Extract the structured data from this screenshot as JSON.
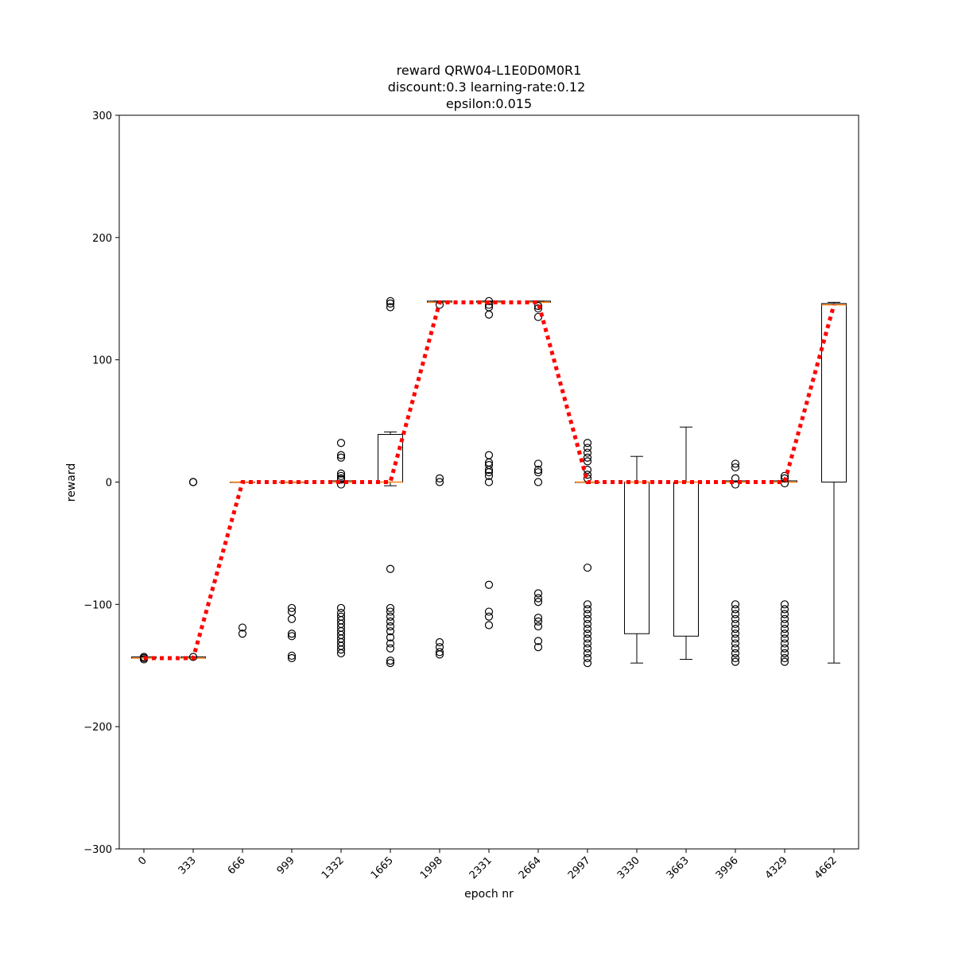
{
  "chart_data": {
    "type": "box",
    "title": [
      "reward QRW04-L1E0D0M0R1",
      "discount:0.3 learning-rate:0.12",
      "epsilon:0.015"
    ],
    "xlabel": "epoch nr",
    "ylabel": "reward",
    "ylim": [
      -300,
      300
    ],
    "yticks": [
      -300,
      -200,
      -100,
      0,
      100,
      200,
      300
    ],
    "categories": [
      "0",
      "333",
      "666",
      "999",
      "1332",
      "1665",
      "1998",
      "2331",
      "2664",
      "2997",
      "3330",
      "3663",
      "3996",
      "4329",
      "4662"
    ],
    "grid": false,
    "legend": "none",
    "colors": {
      "box": "#000000",
      "median": "#ff7f0e",
      "trend": "#ff0000"
    },
    "boxes": [
      {
        "q1": -144,
        "median": -144,
        "q3": -143,
        "whisker_low": -144,
        "whisker_high": -143,
        "fliers": [
          -143,
          -144,
          -145
        ]
      },
      {
        "q1": -144,
        "median": -144,
        "q3": -143,
        "whisker_low": -144,
        "whisker_high": -143,
        "fliers": [
          0,
          0,
          -143
        ]
      },
      {
        "q1": 0,
        "median": 0,
        "q3": 0,
        "whisker_low": 0,
        "whisker_high": 0,
        "fliers": [
          -119,
          -124
        ]
      },
      {
        "q1": 0,
        "median": 0,
        "q3": 0,
        "whisker_low": 0,
        "whisker_high": 0,
        "fliers": [
          -103,
          -106,
          -112,
          -124,
          -126,
          -142,
          -144
        ]
      },
      {
        "q1": 0,
        "median": 0,
        "q3": 1,
        "whisker_low": 0,
        "whisker_high": 1,
        "fliers": [
          32,
          22,
          20,
          7,
          5,
          3,
          2,
          -2,
          -103,
          -107,
          -110,
          -113,
          -116,
          -119,
          -122,
          -125,
          -128,
          -131,
          -134,
          -137,
          -140
        ]
      },
      {
        "q1": 0,
        "median": 0,
        "q3": 39,
        "whisker_low": -3,
        "whisker_high": 41,
        "fliers": [
          148,
          146,
          143,
          -71,
          -103,
          -106,
          -110,
          -114,
          -118,
          -122,
          -127,
          -132,
          -136,
          -146,
          -148
        ]
      },
      {
        "q1": 147,
        "median": 147,
        "q3": 148,
        "whisker_low": 147,
        "whisker_high": 148,
        "fliers": [
          145,
          3,
          0,
          -131,
          -135,
          -139,
          -141
        ]
      },
      {
        "q1": 147,
        "median": 147,
        "q3": 148,
        "whisker_low": 147,
        "whisker_high": 148,
        "fliers": [
          148,
          145,
          143,
          137,
          22,
          16,
          14,
          10,
          8,
          5,
          0,
          -84,
          -106,
          -110,
          -117
        ]
      },
      {
        "q1": 147,
        "median": 147,
        "q3": 148,
        "whisker_low": 147,
        "whisker_high": 148,
        "fliers": [
          144,
          142,
          135,
          15,
          10,
          8,
          0,
          -91,
          -95,
          -98,
          -111,
          -114,
          -118,
          -130,
          -135
        ]
      },
      {
        "q1": 0,
        "median": 0,
        "q3": 0,
        "whisker_low": 0,
        "whisker_high": 0,
        "fliers": [
          32,
          28,
          24,
          20,
          17,
          10,
          6,
          3,
          -70,
          -100,
          -104,
          -108,
          -112,
          -116,
          -120,
          -124,
          -128,
          -132,
          -136,
          -140,
          -144,
          -148
        ]
      },
      {
        "q1": -124,
        "median": 0,
        "q3": 0,
        "whisker_low": -148,
        "whisker_high": 21,
        "fliers": []
      },
      {
        "q1": -126,
        "median": 0,
        "q3": 0,
        "whisker_low": -145,
        "whisker_high": 45,
        "fliers": []
      },
      {
        "q1": 0,
        "median": 0,
        "q3": 1,
        "whisker_low": 0,
        "whisker_high": 1,
        "fliers": [
          15,
          12,
          3,
          -2,
          -100,
          -104,
          -108,
          -112,
          -116,
          -120,
          -124,
          -128,
          -132,
          -136,
          -140,
          -144,
          -147
        ]
      },
      {
        "q1": 0,
        "median": 0,
        "q3": 1,
        "whisker_low": 0,
        "whisker_high": 1,
        "fliers": [
          5,
          3,
          -1,
          -100,
          -104,
          -108,
          -112,
          -116,
          -120,
          -124,
          -128,
          -132,
          -136,
          -140,
          -144,
          -147
        ]
      },
      {
        "q1": 0,
        "median": 145,
        "q3": 146,
        "whisker_low": -148,
        "whisker_high": 147,
        "fliers": []
      }
    ],
    "trend": [
      -144,
      -144,
      0,
      0,
      0,
      0,
      147,
      147,
      147,
      0,
      0,
      0,
      0,
      0,
      145
    ]
  }
}
